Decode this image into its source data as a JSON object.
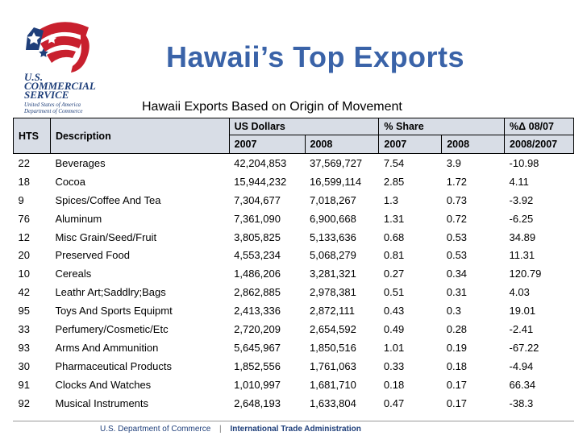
{
  "logo": {
    "line1": "U.S.",
    "line2": "COMMERCIAL",
    "line3": "SERVICE",
    "sub1": "United States of America",
    "sub2": "Department of Commerce"
  },
  "title": "Hawaii’s Top Exports",
  "subtitle": "Hawaii Exports Based on Origin of Movement",
  "table": {
    "col_hts": "HTS",
    "col_desc": "Description",
    "group_usd": "US Dollars",
    "group_share": "% Share",
    "group_change": "%Δ 08/07",
    "sub_2007a": "2007",
    "sub_2008a": "2008",
    "sub_2007b": "2007",
    "sub_2008b": "2008",
    "sub_change": "2008/2007",
    "rows": [
      {
        "hts": "22",
        "desc": "Beverages",
        "usd2007": "42,204,853",
        "usd2008": "37,569,727",
        "sh2007": "7.54",
        "sh2008": "3.9",
        "chg": "-10.98"
      },
      {
        "hts": "18",
        "desc": "Cocoa",
        "usd2007": "15,944,232",
        "usd2008": "16,599,114",
        "sh2007": "2.85",
        "sh2008": "1.72",
        "chg": "4.11"
      },
      {
        "hts": "9",
        "desc": "Spices/Coffee And Tea",
        "usd2007": "7,304,677",
        "usd2008": "7,018,267",
        "sh2007": "1.3",
        "sh2008": "0.73",
        "chg": "-3.92"
      },
      {
        "hts": "76",
        "desc": "Aluminum",
        "usd2007": "7,361,090",
        "usd2008": "6,900,668",
        "sh2007": "1.31",
        "sh2008": "0.72",
        "chg": "-6.25"
      },
      {
        "hts": "12",
        "desc": "Misc Grain/Seed/Fruit",
        "usd2007": "3,805,825",
        "usd2008": "5,133,636",
        "sh2007": "0.68",
        "sh2008": "0.53",
        "chg": "34.89"
      },
      {
        "hts": "20",
        "desc": "Preserved Food",
        "usd2007": "4,553,234",
        "usd2008": "5,068,279",
        "sh2007": "0.81",
        "sh2008": "0.53",
        "chg": "11.31"
      },
      {
        "hts": "10",
        "desc": "Cereals",
        "usd2007": "1,486,206",
        "usd2008": "3,281,321",
        "sh2007": "0.27",
        "sh2008": "0.34",
        "chg": "120.79"
      },
      {
        "hts": "42",
        "desc": "Leathr Art;Saddlry;Bags",
        "usd2007": "2,862,885",
        "usd2008": "2,978,381",
        "sh2007": "0.51",
        "sh2008": "0.31",
        "chg": "4.03"
      },
      {
        "hts": "95",
        "desc": "Toys And Sports Equipmt",
        "usd2007": "2,413,336",
        "usd2008": "2,872,111",
        "sh2007": "0.43",
        "sh2008": "0.3",
        "chg": "19.01"
      },
      {
        "hts": "33",
        "desc": "Perfumery/Cosmetic/Etc",
        "usd2007": "2,720,209",
        "usd2008": "2,654,592",
        "sh2007": "0.49",
        "sh2008": "0.28",
        "chg": "-2.41"
      },
      {
        "hts": "93",
        "desc": "Arms And Ammunition",
        "usd2007": "5,645,967",
        "usd2008": "1,850,516",
        "sh2007": "1.01",
        "sh2008": "0.19",
        "chg": "-67.22"
      },
      {
        "hts": "30",
        "desc": "Pharmaceutical Products",
        "usd2007": "1,852,556",
        "usd2008": "1,761,063",
        "sh2007": "0.33",
        "sh2008": "0.18",
        "chg": "-4.94"
      },
      {
        "hts": "91",
        "desc": "Clocks And Watches",
        "usd2007": "1,010,997",
        "usd2008": "1,681,710",
        "sh2007": "0.18",
        "sh2008": "0.17",
        "chg": "66.34"
      },
      {
        "hts": "92",
        "desc": "Musical Instruments",
        "usd2007": "2,648,193",
        "usd2008": "1,633,804",
        "sh2007": "0.47",
        "sh2008": "0.17",
        "chg": "-38.3"
      }
    ]
  },
  "footer": {
    "dept": "U.S. Department of Commerce",
    "ita": "International Trade Administration"
  }
}
